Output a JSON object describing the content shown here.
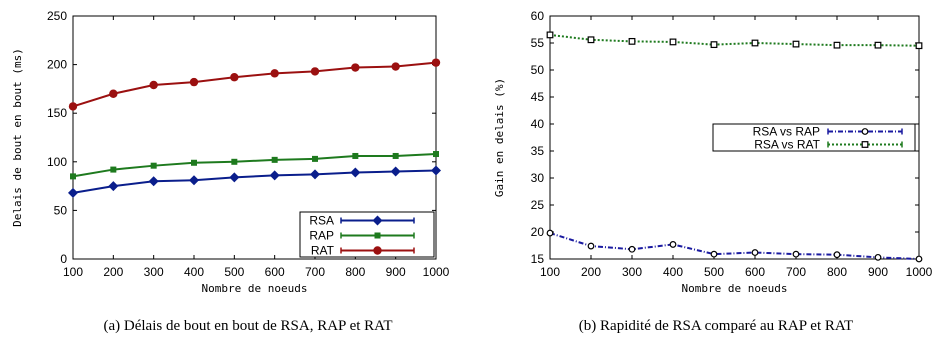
{
  "chart_data": [
    {
      "type": "line",
      "caption": "(a)  Délais de bout en bout de RSA, RAP et RAT",
      "xlabel": "Nombre de noeuds",
      "ylabel": "Delais de bout en bout (ms)",
      "x": [
        100,
        200,
        300,
        400,
        500,
        600,
        700,
        800,
        900,
        1000
      ],
      "xlim": [
        100,
        1000
      ],
      "ylim": [
        0,
        250
      ],
      "yticks": [
        0,
        50,
        100,
        150,
        200,
        250
      ],
      "legend_position": "bottom-right",
      "series": [
        {
          "name": "RSA",
          "color": "#0a1e8c",
          "marker": "diamond",
          "dash": "solid",
          "values": [
            68,
            75,
            80,
            81,
            84,
            86,
            87,
            89,
            90,
            91
          ]
        },
        {
          "name": "RAP",
          "color": "#1e7a1e",
          "marker": "square",
          "dash": "solid",
          "values": [
            85,
            92,
            96,
            99,
            100,
            102,
            103,
            106,
            106,
            108
          ]
        },
        {
          "name": "RAT",
          "color": "#9b1010",
          "marker": "circle",
          "dash": "solid",
          "values": [
            157,
            170,
            179,
            182,
            187,
            191,
            193,
            197,
            198,
            202
          ]
        }
      ]
    },
    {
      "type": "line",
      "caption": "(b)  Rapidité de RSA comparé au RAP et RAT",
      "xlabel": "Nombre de noeuds",
      "ylabel": "Gain en delais (%)",
      "x": [
        100,
        200,
        300,
        400,
        500,
        600,
        700,
        800,
        900,
        1000
      ],
      "xlim": [
        100,
        1000
      ],
      "ylim": [
        15,
        60
      ],
      "yticks": [
        15,
        20,
        25,
        30,
        35,
        40,
        45,
        50,
        55,
        60
      ],
      "legend_position": "right",
      "series": [
        {
          "name": "RSA vs RAP",
          "color": "#1a1aa0",
          "marker": "open-circle",
          "dash": "dashdot",
          "values": [
            19.8,
            17.4,
            16.8,
            17.7,
            15.9,
            16.2,
            15.9,
            15.8,
            15.3,
            15.0
          ]
        },
        {
          "name": "RSA vs RAT",
          "color": "#1e7a1e",
          "marker": "open-square",
          "dash": "dotted",
          "values": [
            56.5,
            55.6,
            55.3,
            55.2,
            54.7,
            55.0,
            54.8,
            54.6,
            54.6,
            54.5
          ]
        }
      ]
    }
  ]
}
